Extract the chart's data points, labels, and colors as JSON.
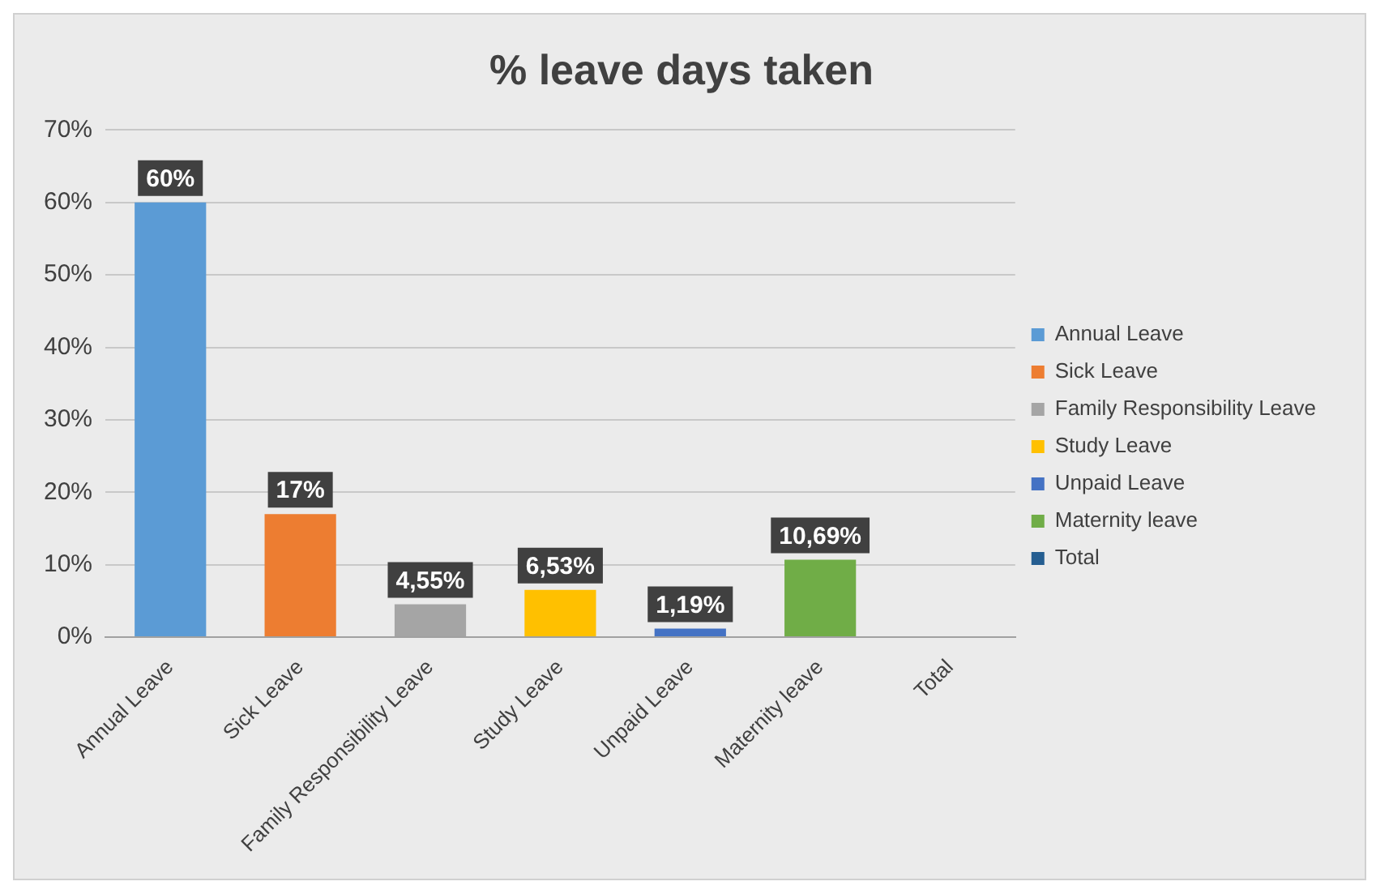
{
  "chart_data": {
    "type": "bar",
    "title": "% leave days taken",
    "categories": [
      "Annual Leave",
      "Sick Leave",
      "Family Responsibility Leave",
      "Study Leave",
      "Unpaid Leave",
      "Maternity leave",
      "Total"
    ],
    "series": [
      {
        "name": "Annual Leave",
        "color": "#5b9bd5",
        "values": [
          60,
          null,
          null,
          null,
          null,
          null,
          null
        ],
        "value_labels": [
          "60%",
          null,
          null,
          null,
          null,
          null,
          null
        ]
      },
      {
        "name": "Sick Leave",
        "color": "#ed7d31",
        "values": [
          null,
          17,
          null,
          null,
          null,
          null,
          null
        ],
        "value_labels": [
          null,
          "17%",
          null,
          null,
          null,
          null,
          null
        ]
      },
      {
        "name": "Family Responsibility Leave",
        "color": "#a5a5a5",
        "values": [
          null,
          null,
          4.55,
          null,
          null,
          null,
          null
        ],
        "value_labels": [
          null,
          null,
          "4,55%",
          null,
          null,
          null,
          null
        ]
      },
      {
        "name": "Study Leave",
        "color": "#ffc000",
        "values": [
          null,
          null,
          null,
          6.53,
          null,
          null,
          null
        ],
        "value_labels": [
          null,
          null,
          null,
          "6,53%",
          null,
          null,
          null
        ]
      },
      {
        "name": "Unpaid Leave",
        "color": "#4472c4",
        "values": [
          null,
          null,
          null,
          null,
          1.19,
          null,
          null
        ],
        "value_labels": [
          null,
          null,
          null,
          null,
          "1,19%",
          null,
          null
        ]
      },
      {
        "name": "Maternity leave",
        "color": "#70ad47",
        "values": [
          null,
          null,
          null,
          null,
          null,
          10.69,
          null
        ],
        "value_labels": [
          null,
          null,
          null,
          null,
          null,
          "10,69%",
          null
        ]
      },
      {
        "name": "Total",
        "color": "#255e91",
        "values": [
          null,
          null,
          null,
          null,
          null,
          null,
          null
        ]
      }
    ],
    "ylim": [
      0,
      70
    ],
    "yticks": [
      {
        "value": 0,
        "label": "0%"
      },
      {
        "value": 10,
        "label": "10%"
      },
      {
        "value": 20,
        "label": "20%"
      },
      {
        "value": 30,
        "label": "30%"
      },
      {
        "value": 40,
        "label": "40%"
      },
      {
        "value": 50,
        "label": "50%"
      },
      {
        "value": 60,
        "label": "60%"
      },
      {
        "value": 70,
        "label": "70%"
      }
    ],
    "grid": "y",
    "legend": "right"
  }
}
